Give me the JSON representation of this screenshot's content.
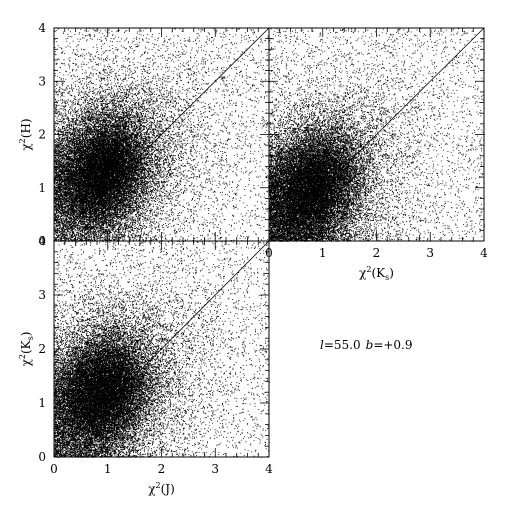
{
  "chart_data": [
    {
      "type": "scatter",
      "panel": "top-left",
      "xlim": [
        0,
        4
      ],
      "ylim": [
        0,
        4
      ],
      "xlabel": "",
      "ylabel": "χ²(H)",
      "x_ticks": [
        "0",
        "1",
        "2",
        "3",
        "4"
      ],
      "y_ticks": [
        "0",
        "1",
        "2",
        "3",
        "4"
      ],
      "x_tick_labels_shown": false,
      "y_tick_labels_shown": true,
      "reference_line": [
        [
          0,
          0
        ],
        [
          4,
          4
        ]
      ],
      "density_peak": [
        0.9,
        1.3
      ],
      "points_approx": 30000
    },
    {
      "type": "scatter",
      "panel": "top-right",
      "xlim": [
        0,
        4
      ],
      "ylim": [
        0,
        4
      ],
      "xlabel": "χ²(Ks)",
      "ylabel": "",
      "x_ticks": [
        "0",
        "1",
        "2",
        "3",
        "4"
      ],
      "y_ticks": [
        "0",
        "1",
        "2",
        "3",
        "4"
      ],
      "x_tick_labels_shown": true,
      "y_tick_labels_shown": false,
      "reference_line": [
        [
          0,
          0
        ],
        [
          4,
          4
        ]
      ],
      "density_peak": [
        0.8,
        1.0
      ],
      "points_approx": 28000
    },
    {
      "type": "scatter",
      "panel": "bottom-left",
      "xlim": [
        0,
        4
      ],
      "ylim": [
        0,
        4
      ],
      "xlabel": "χ²(J)",
      "ylabel": "χ²(Ks)",
      "x_ticks": [
        "0",
        "1",
        "2",
        "3",
        "4"
      ],
      "y_ticks": [
        "0",
        "1",
        "2",
        "3",
        "4"
      ],
      "x_tick_labels_shown": true,
      "y_tick_labels_shown": true,
      "reference_line": [
        [
          0,
          0
        ],
        [
          4,
          4
        ]
      ],
      "density_peak": [
        0.9,
        1.2
      ],
      "points_approx": 30000
    }
  ],
  "annotation": {
    "l_label": "l",
    "l_value": "=55.0",
    "b_label": "b",
    "b_value": "=+0.9"
  }
}
